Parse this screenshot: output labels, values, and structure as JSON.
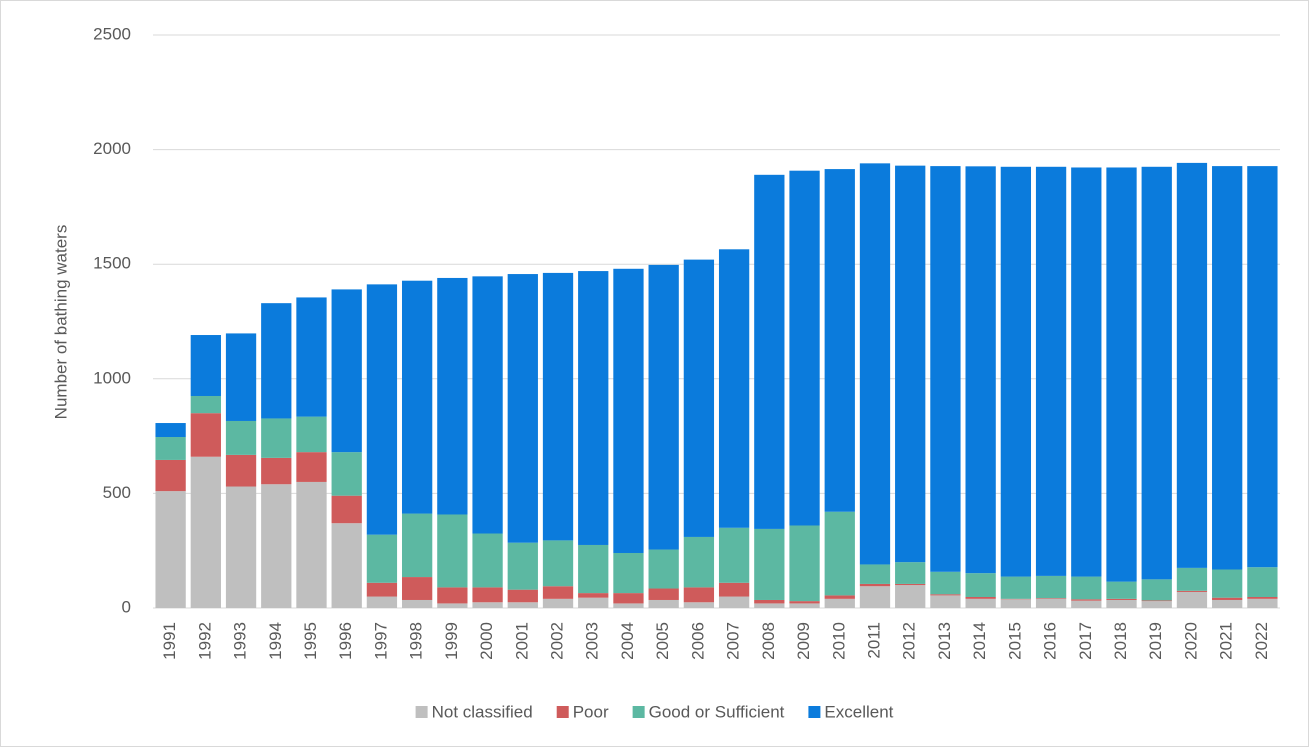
{
  "chart_data": {
    "type": "stacked_bar",
    "y_label": "Number of bathing waters",
    "categories": [
      "1991",
      "1992",
      "1993",
      "1994",
      "1995",
      "1996",
      "1997",
      "1998",
      "1999",
      "2000",
      "2001",
      "2002",
      "2003",
      "2004",
      "2005",
      "2006",
      "2007",
      "2008",
      "2009",
      "2010",
      "2011",
      "2012",
      "2013",
      "2014",
      "2015",
      "2016",
      "2017",
      "2018",
      "2019",
      "2020",
      "2021",
      "2022"
    ],
    "series": [
      {
        "name": "Not classified",
        "color": "#bfbfbf",
        "values": [
          510,
          660,
          530,
          540,
          550,
          370,
          50,
          35,
          20,
          25,
          25,
          40,
          45,
          20,
          35,
          25,
          50,
          20,
          20,
          40,
          95,
          100,
          55,
          40,
          38,
          40,
          32,
          35,
          30,
          70,
          35,
          40
        ]
      },
      {
        "name": "Poor",
        "color": "#cf5b5b",
        "values": [
          136,
          190,
          138,
          115,
          130,
          120,
          60,
          100,
          70,
          65,
          55,
          55,
          20,
          45,
          50,
          65,
          60,
          15,
          10,
          15,
          10,
          5,
          5,
          8,
          2,
          3,
          6,
          5,
          3,
          5,
          10,
          8
        ]
      },
      {
        "name": "Good or Sufficient",
        "color": "#5cb8a2",
        "values": [
          100,
          75,
          148,
          172,
          155,
          190,
          210,
          277,
          318,
          235,
          205,
          200,
          210,
          175,
          170,
          220,
          240,
          310,
          330,
          365,
          85,
          95,
          98,
          104,
          97,
          97,
          99,
          75,
          92,
          100,
          123,
          130
        ]
      },
      {
        "name": "Excellent",
        "color": "#0b7bdc",
        "values": [
          61,
          266,
          382,
          503,
          520,
          710,
          1092,
          1016,
          1032,
          1122,
          1172,
          1167,
          1195,
          1240,
          1242,
          1210,
          1215,
          1545,
          1548,
          1495,
          1750,
          1730,
          1770,
          1775,
          1788,
          1785,
          1785,
          1807,
          1800,
          1767,
          1760,
          1750
        ]
      }
    ],
    "ylim": [
      0,
      2500
    ],
    "yticks": [
      0,
      500,
      1000,
      1500,
      2000,
      2500
    ],
    "grid": true,
    "legend": "bottom"
  }
}
